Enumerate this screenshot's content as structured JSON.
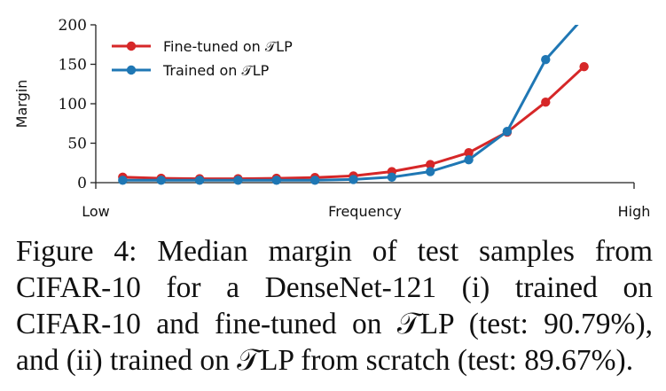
{
  "chart_data": {
    "type": "line",
    "x": [
      1,
      2,
      3,
      4,
      5,
      6,
      7,
      8,
      9,
      10,
      11,
      12,
      13,
      14
    ],
    "series": [
      {
        "name": "Fine-tuned on 𝒯LP",
        "color": "#d62728",
        "values": [
          7,
          5.5,
          5,
          5,
          5.5,
          6.5,
          8.5,
          14,
          23,
          38,
          64,
          102,
          147,
          null
        ]
      },
      {
        "name": "Trained on 𝒯LP",
        "color": "#1f77b4",
        "values": [
          3,
          3,
          3,
          3,
          3,
          3,
          4,
          7,
          14,
          29,
          65,
          156,
          210,
          null
        ]
      }
    ],
    "xlabel": "Frequency",
    "x_tick_labels": [
      "Low",
      "High"
    ],
    "ylabel": "Margin",
    "ylim": [
      0,
      200
    ],
    "yticks": [
      0,
      50,
      100,
      150,
      200
    ],
    "legend_position": "top-left",
    "grid": false
  },
  "legend": {
    "fine_tuned": "Fine-tuned on 𝒯LP",
    "trained": "Trained on 𝒯LP"
  },
  "caption": {
    "line1": "Figure 4: Median margin of test samples from",
    "line2": "CIFAR-10 for a DenseNet-121 (i) trained on",
    "line3": "CIFAR-10 and fine-tuned on 𝒯LP (test: 90.79%),",
    "line4": "and (ii) trained on 𝒯LP from scratch (test: 89.67%)."
  }
}
